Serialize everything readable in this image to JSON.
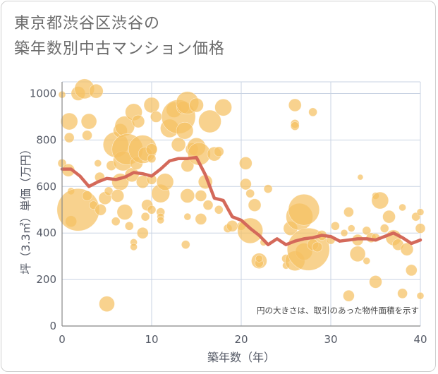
{
  "title_lines": [
    "東京都渋谷区渋谷の",
    "築年数別中古マンション価格"
  ],
  "chart_data": {
    "type": "scatter",
    "xlabel": "築年数（年）",
    "ylabel": "坪（3.3㎡）単価（万円）",
    "xlim": [
      0,
      40
    ],
    "ylim": [
      0,
      1050
    ],
    "x_ticks": [
      0,
      10,
      20,
      30,
      40
    ],
    "y_ticks": [
      0,
      200,
      400,
      600,
      800,
      1000
    ],
    "grid": true,
    "annotation": "円の大きさは、取引のあった物件面積を示す",
    "colors": {
      "bubble": "#f5c063",
      "line": "#d4695a",
      "grid": "#c9d3e3",
      "axis": "#888888"
    },
    "trend_line": {
      "name": "",
      "x": [
        0,
        1,
        2,
        3,
        4,
        5,
        6,
        7,
        8,
        9,
        10,
        11,
        12,
        13,
        14,
        15,
        16,
        17,
        18,
        19,
        20,
        21,
        22,
        23,
        24,
        25,
        26,
        27,
        28,
        29,
        30,
        31,
        32,
        33,
        34,
        35,
        36,
        37,
        38,
        39,
        40
      ],
      "y": [
        675,
        675,
        645,
        600,
        620,
        635,
        630,
        640,
        660,
        655,
        645,
        675,
        710,
        720,
        720,
        725,
        650,
        550,
        540,
        470,
        455,
        420,
        390,
        350,
        375,
        350,
        365,
        375,
        380,
        390,
        385,
        365,
        370,
        375,
        375,
        370,
        385,
        400,
        380,
        355,
        370
      ]
    },
    "points": [
      {
        "x": 0,
        "y": 995,
        "s": 5
      },
      {
        "x": 0,
        "y": 700,
        "s": 6
      },
      {
        "x": 0.8,
        "y": 880,
        "s": 12
      },
      {
        "x": 0.7,
        "y": 670,
        "s": 9
      },
      {
        "x": 0.8,
        "y": 810,
        "s": 7
      },
      {
        "x": 1,
        "y": 450,
        "s": 8
      },
      {
        "x": 1,
        "y": 580,
        "s": 5
      },
      {
        "x": 1.8,
        "y": 500,
        "s": 30
      },
      {
        "x": 1.8,
        "y": 1000,
        "s": 10
      },
      {
        "x": 2.5,
        "y": 1020,
        "s": 14
      },
      {
        "x": 3.8,
        "y": 1010,
        "s": 10
      },
      {
        "x": 3,
        "y": 880,
        "s": 11
      },
      {
        "x": 2.8,
        "y": 820,
        "s": 7
      },
      {
        "x": 2.8,
        "y": 560,
        "s": 7
      },
      {
        "x": 3.5,
        "y": 520,
        "s": 6
      },
      {
        "x": 4,
        "y": 700,
        "s": 5
      },
      {
        "x": 4.2,
        "y": 640,
        "s": 7
      },
      {
        "x": 4.3,
        "y": 500,
        "s": 8
      },
      {
        "x": 4.8,
        "y": 550,
        "s": 9
      },
      {
        "x": 5,
        "y": 95,
        "s": 11
      },
      {
        "x": 5.2,
        "y": 580,
        "s": 6
      },
      {
        "x": 5.5,
        "y": 690,
        "s": 7
      },
      {
        "x": 6,
        "y": 780,
        "s": 18
      },
      {
        "x": 6.5,
        "y": 840,
        "s": 10
      },
      {
        "x": 6.8,
        "y": 710,
        "s": 14
      },
      {
        "x": 7,
        "y": 860,
        "s": 14
      },
      {
        "x": 7.3,
        "y": 760,
        "s": 22
      },
      {
        "x": 6.5,
        "y": 620,
        "s": 12
      },
      {
        "x": 6.2,
        "y": 560,
        "s": 9
      },
      {
        "x": 7,
        "y": 490,
        "s": 11
      },
      {
        "x": 6,
        "y": 450,
        "s": 6
      },
      {
        "x": 7.5,
        "y": 430,
        "s": 6
      },
      {
        "x": 7.8,
        "y": 650,
        "s": 10
      },
      {
        "x": 8,
        "y": 920,
        "s": 12
      },
      {
        "x": 8.3,
        "y": 700,
        "s": 9
      },
      {
        "x": 8,
        "y": 360,
        "s": 5
      },
      {
        "x": 8,
        "y": 340,
        "s": 5
      },
      {
        "x": 8.5,
        "y": 880,
        "s": 9
      },
      {
        "x": 9,
        "y": 760,
        "s": 20
      },
      {
        "x": 9.3,
        "y": 740,
        "s": 10
      },
      {
        "x": 9,
        "y": 620,
        "s": 9
      },
      {
        "x": 9.5,
        "y": 520,
        "s": 8
      },
      {
        "x": 9.3,
        "y": 470,
        "s": 6
      },
      {
        "x": 9,
        "y": 400,
        "s": 8
      },
      {
        "x": 10,
        "y": 950,
        "s": 11
      },
      {
        "x": 10,
        "y": 760,
        "s": 8
      },
      {
        "x": 10,
        "y": 720,
        "s": 6
      },
      {
        "x": 10,
        "y": 630,
        "s": 7
      },
      {
        "x": 10,
        "y": 500,
        "s": 6
      },
      {
        "x": 10.5,
        "y": 900,
        "s": 8
      },
      {
        "x": 11,
        "y": 570,
        "s": 13
      },
      {
        "x": 11,
        "y": 490,
        "s": 6
      },
      {
        "x": 11,
        "y": 470,
        "s": 5
      },
      {
        "x": 11,
        "y": 455,
        "s": 5
      },
      {
        "x": 11.5,
        "y": 620,
        "s": 12
      },
      {
        "x": 12,
        "y": 850,
        "s": 13
      },
      {
        "x": 12.5,
        "y": 930,
        "s": 11
      },
      {
        "x": 13,
        "y": 900,
        "s": 24
      },
      {
        "x": 13,
        "y": 780,
        "s": 10
      },
      {
        "x": 13.5,
        "y": 940,
        "s": 9
      },
      {
        "x": 13.7,
        "y": 840,
        "s": 12
      },
      {
        "x": 14,
        "y": 960,
        "s": 16
      },
      {
        "x": 14,
        "y": 690,
        "s": 9
      },
      {
        "x": 14,
        "y": 560,
        "s": 10
      },
      {
        "x": 13.8,
        "y": 350,
        "s": 6
      },
      {
        "x": 14,
        "y": 470,
        "s": 5
      },
      {
        "x": 14.5,
        "y": 760,
        "s": 9
      },
      {
        "x": 15,
        "y": 950,
        "s": 10
      },
      {
        "x": 15,
        "y": 770,
        "s": 13
      },
      {
        "x": 15.3,
        "y": 740,
        "s": 16
      },
      {
        "x": 15.5,
        "y": 560,
        "s": 8
      },
      {
        "x": 15.5,
        "y": 460,
        "s": 8
      },
      {
        "x": 16,
        "y": 620,
        "s": 10
      },
      {
        "x": 16.3,
        "y": 520,
        "s": 7
      },
      {
        "x": 16.5,
        "y": 880,
        "s": 16
      },
      {
        "x": 17,
        "y": 740,
        "s": 10
      },
      {
        "x": 17.5,
        "y": 750,
        "s": 7
      },
      {
        "x": 17.5,
        "y": 500,
        "s": 6
      },
      {
        "x": 18,
        "y": 940,
        "s": 12
      },
      {
        "x": 18.5,
        "y": 420,
        "s": 6
      },
      {
        "x": 19,
        "y": 430,
        "s": 8
      },
      {
        "x": 20,
        "y": 430,
        "s": 6
      },
      {
        "x": 20.5,
        "y": 700,
        "s": 9
      },
      {
        "x": 20.5,
        "y": 610,
        "s": 8
      },
      {
        "x": 21,
        "y": 410,
        "s": 18
      },
      {
        "x": 21,
        "y": 570,
        "s": 6
      },
      {
        "x": 21.5,
        "y": 520,
        "s": 9
      },
      {
        "x": 22,
        "y": 280,
        "s": 11
      },
      {
        "x": 22,
        "y": 270,
        "s": 6
      },
      {
        "x": 22,
        "y": 290,
        "s": 5
      },
      {
        "x": 22.5,
        "y": 360,
        "s": 5
      },
      {
        "x": 23,
        "y": 590,
        "s": 6
      },
      {
        "x": 25,
        "y": 260,
        "s": 5
      },
      {
        "x": 25,
        "y": 290,
        "s": 6
      },
      {
        "x": 25.5,
        "y": 420,
        "s": 10
      },
      {
        "x": 26,
        "y": 950,
        "s": 9
      },
      {
        "x": 26,
        "y": 870,
        "s": 6
      },
      {
        "x": 26,
        "y": 860,
        "s": 6
      },
      {
        "x": 26,
        "y": 280,
        "s": 14
      },
      {
        "x": 26.5,
        "y": 470,
        "s": 19
      },
      {
        "x": 27,
        "y": 500,
        "s": 22
      },
      {
        "x": 27,
        "y": 320,
        "s": 12
      },
      {
        "x": 27.5,
        "y": 330,
        "s": 30
      },
      {
        "x": 28,
        "y": 920,
        "s": 6
      },
      {
        "x": 28,
        "y": 350,
        "s": 8
      },
      {
        "x": 28.5,
        "y": 340,
        "s": 7
      },
      {
        "x": 29,
        "y": 390,
        "s": 7
      },
      {
        "x": 30,
        "y": 370,
        "s": 6
      },
      {
        "x": 30.5,
        "y": 430,
        "s": 6
      },
      {
        "x": 31.5,
        "y": 400,
        "s": 5
      },
      {
        "x": 32,
        "y": 490,
        "s": 7
      },
      {
        "x": 32,
        "y": 130,
        "s": 8
      },
      {
        "x": 32.3,
        "y": 420,
        "s": 5
      },
      {
        "x": 33,
        "y": 310,
        "s": 11
      },
      {
        "x": 33,
        "y": 370,
        "s": 8
      },
      {
        "x": 33.3,
        "y": 640,
        "s": 4
      },
      {
        "x": 34,
        "y": 410,
        "s": 6
      },
      {
        "x": 34,
        "y": 280,
        "s": 5
      },
      {
        "x": 34.5,
        "y": 380,
        "s": 7
      },
      {
        "x": 35,
        "y": 560,
        "s": 5
      },
      {
        "x": 35,
        "y": 190,
        "s": 9
      },
      {
        "x": 35,
        "y": 380,
        "s": 6
      },
      {
        "x": 35.5,
        "y": 540,
        "s": 12
      },
      {
        "x": 36,
        "y": 420,
        "s": 6
      },
      {
        "x": 36.5,
        "y": 470,
        "s": 9
      },
      {
        "x": 37,
        "y": 380,
        "s": 11
      },
      {
        "x": 37.5,
        "y": 350,
        "s": 8
      },
      {
        "x": 38,
        "y": 140,
        "s": 7
      },
      {
        "x": 38,
        "y": 510,
        "s": 5
      },
      {
        "x": 38.5,
        "y": 330,
        "s": 9
      },
      {
        "x": 39,
        "y": 240,
        "s": 8
      },
      {
        "x": 39.5,
        "y": 470,
        "s": 6
      },
      {
        "x": 40,
        "y": 490,
        "s": 5
      },
      {
        "x": 40,
        "y": 420,
        "s": 7
      },
      {
        "x": 40,
        "y": 130,
        "s": 5
      }
    ]
  }
}
